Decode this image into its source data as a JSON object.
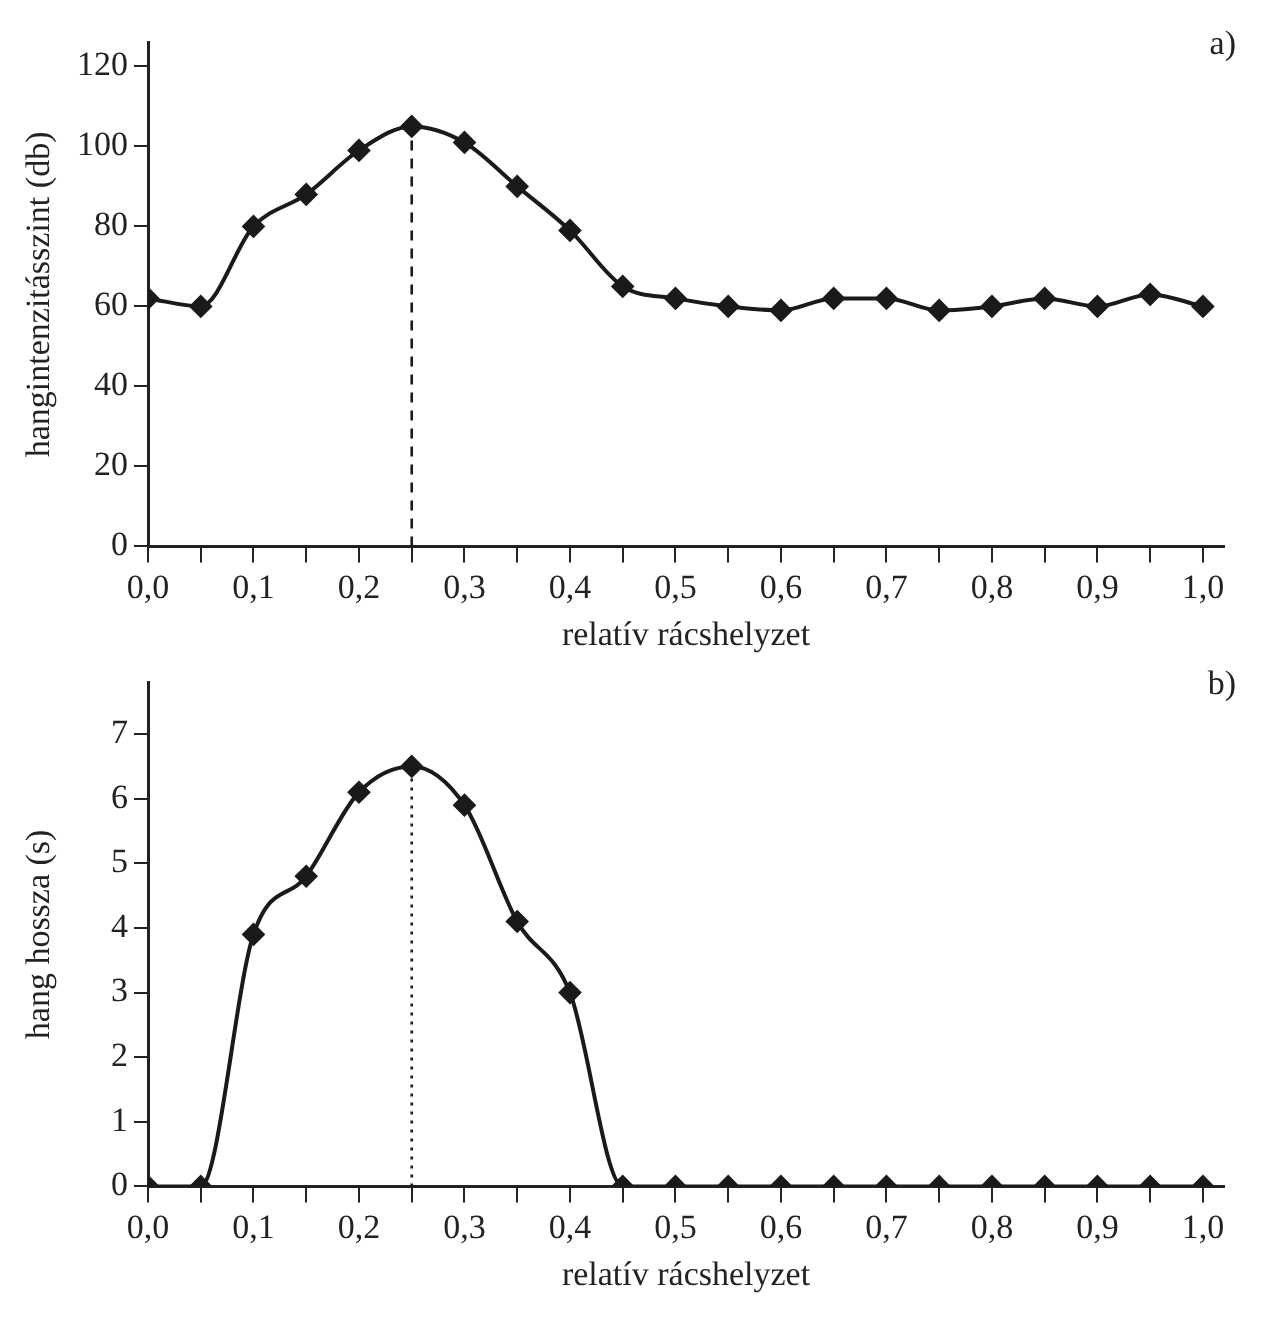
{
  "chart_data": [
    {
      "type": "line",
      "ylabel": "hangintenzitásszint (db)",
      "xlabel": "relatív rácshelyzet",
      "x": [
        0.0,
        0.05,
        0.1,
        0.15,
        0.2,
        0.25,
        0.3,
        0.35,
        0.4,
        0.45,
        0.5,
        0.55,
        0.6,
        0.65,
        0.7,
        0.75,
        0.8,
        0.85,
        0.9,
        0.95,
        1.0
      ],
      "series": [
        {
          "color": "#1a1a1a",
          "values": [
            62,
            60,
            80,
            88,
            99,
            105,
            101,
            90,
            79,
            65,
            62,
            60,
            59,
            62,
            62,
            59,
            60,
            62,
            60,
            63,
            60
          ]
        }
      ],
      "xlim": [
        0,
        1.02
      ],
      "ylim": [
        0,
        126
      ],
      "xticks": [
        {
          "value": 0,
          "label": "0,0"
        },
        {
          "value": 0.05,
          "label": null
        },
        {
          "value": 0.1,
          "label": "0,1"
        },
        {
          "value": 0.15,
          "label": null
        },
        {
          "value": 0.2,
          "label": "0,2"
        },
        {
          "value": 0.25,
          "label": null
        },
        {
          "value": 0.3,
          "label": "0,3"
        },
        {
          "value": 0.35,
          "label": null
        },
        {
          "value": 0.4,
          "label": "0,4"
        },
        {
          "value": 0.45,
          "label": null
        },
        {
          "value": 0.5,
          "label": "0,5"
        },
        {
          "value": 0.55,
          "label": null
        },
        {
          "value": 0.6,
          "label": "0,6"
        },
        {
          "value": 0.65,
          "label": null
        },
        {
          "value": 0.7,
          "label": "0,7"
        },
        {
          "value": 0.75,
          "label": null
        },
        {
          "value": 0.8,
          "label": "0,8"
        },
        {
          "value": 0.85,
          "label": null
        },
        {
          "value": 0.9,
          "label": "0,9"
        },
        {
          "value": 0.95,
          "label": null
        },
        {
          "value": 1.0,
          "label": "1,0"
        }
      ],
      "yticks": [
        0,
        20,
        40,
        60,
        80,
        100,
        120
      ],
      "ref_lines": [
        {
          "axis": "x",
          "value": 0.25,
          "line_style": "dashed"
        }
      ],
      "annotations": [
        "a)"
      ],
      "marker": "diamond",
      "grid": false,
      "legend": false
    },
    {
      "type": "line",
      "ylabel": "hang hossza (s)",
      "xlabel": "relatív rácshelyzet",
      "x": [
        0.0,
        0.05,
        0.1,
        0.15,
        0.2,
        0.25,
        0.3,
        0.35,
        0.4,
        0.45,
        0.5,
        0.55,
        0.6,
        0.65,
        0.7,
        0.75,
        0.8,
        0.85,
        0.9,
        0.95,
        1.0
      ],
      "series": [
        {
          "color": "#1a1a1a",
          "values": [
            0,
            0,
            3.9,
            4.8,
            6.1,
            6.5,
            5.9,
            4.1,
            3.0,
            0,
            0,
            0,
            0,
            0,
            0,
            0,
            0,
            0,
            0,
            0,
            0
          ]
        }
      ],
      "xlim": [
        0,
        1.02
      ],
      "ylim": [
        0,
        7.8
      ],
      "xticks": [
        {
          "value": 0,
          "label": "0,0"
        },
        {
          "value": 0.05,
          "label": null
        },
        {
          "value": 0.1,
          "label": "0,1"
        },
        {
          "value": 0.15,
          "label": null
        },
        {
          "value": 0.2,
          "label": "0,2"
        },
        {
          "value": 0.25,
          "label": null
        },
        {
          "value": 0.3,
          "label": "0,3"
        },
        {
          "value": 0.35,
          "label": null
        },
        {
          "value": 0.4,
          "label": "0,4"
        },
        {
          "value": 0.45,
          "label": null
        },
        {
          "value": 0.5,
          "label": "0,5"
        },
        {
          "value": 0.55,
          "label": null
        },
        {
          "value": 0.6,
          "label": "0,6"
        },
        {
          "value": 0.65,
          "label": null
        },
        {
          "value": 0.7,
          "label": "0,7"
        },
        {
          "value": 0.75,
          "label": null
        },
        {
          "value": 0.8,
          "label": "0,8"
        },
        {
          "value": 0.85,
          "label": null
        },
        {
          "value": 0.9,
          "label": "0,9"
        },
        {
          "value": 0.95,
          "label": null
        },
        {
          "value": 1.0,
          "label": "1,0"
        }
      ],
      "yticks": [
        0,
        1,
        2,
        3,
        4,
        5,
        6,
        7
      ],
      "ref_lines": [
        {
          "axis": "x",
          "value": 0.25,
          "line_style": "dotted"
        }
      ],
      "annotations": [
        "b)"
      ],
      "marker": "diamond",
      "grid": false,
      "legend": false
    }
  ]
}
